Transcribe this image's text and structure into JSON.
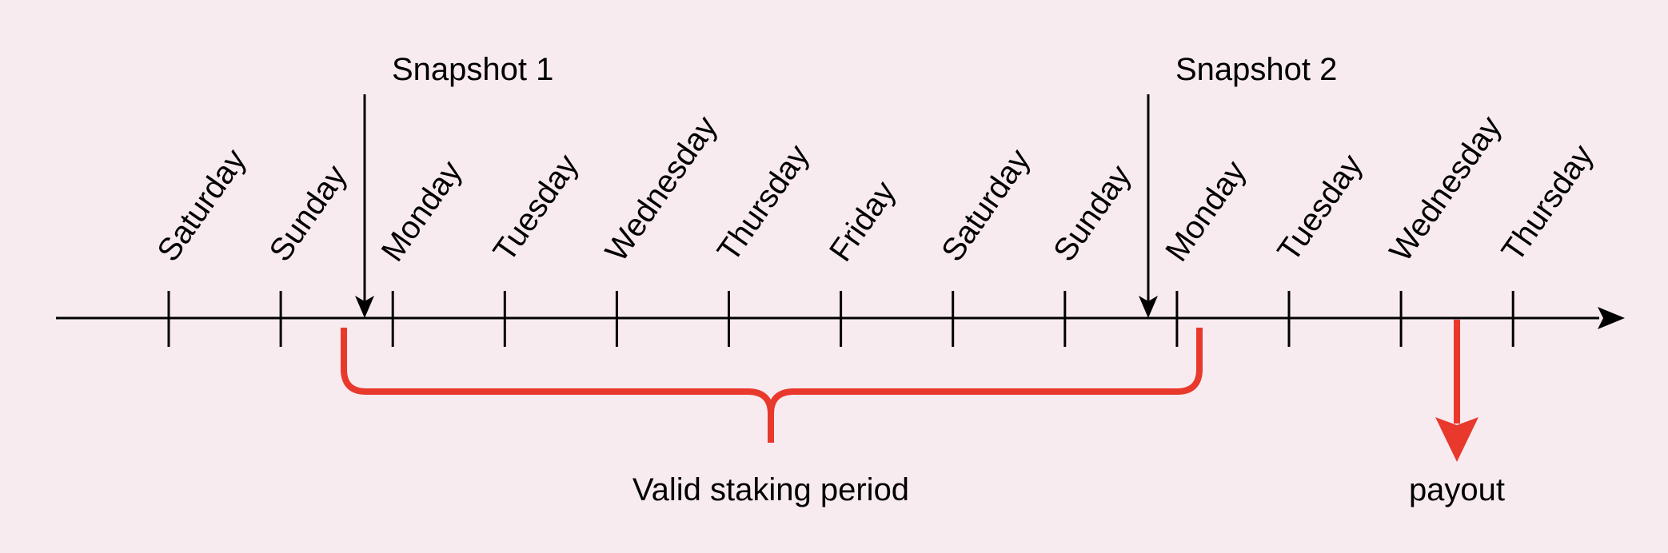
{
  "colors": {
    "background": "#f8ebf0",
    "axis": "#000000",
    "accent": "#e8392c"
  },
  "days": [
    "Saturday",
    "Sunday",
    "Monday",
    "Tuesday",
    "Wednesday",
    "Thursday",
    "Friday",
    "Saturday",
    "Sunday",
    "Monday",
    "Tuesday",
    "Wednesday",
    "Thursday"
  ],
  "snapshots": [
    {
      "label": "Snapshot 1"
    },
    {
      "label": "Snapshot 2"
    }
  ],
  "staking_period": {
    "label": "Valid staking period"
  },
  "payout": {
    "label": "payout"
  }
}
